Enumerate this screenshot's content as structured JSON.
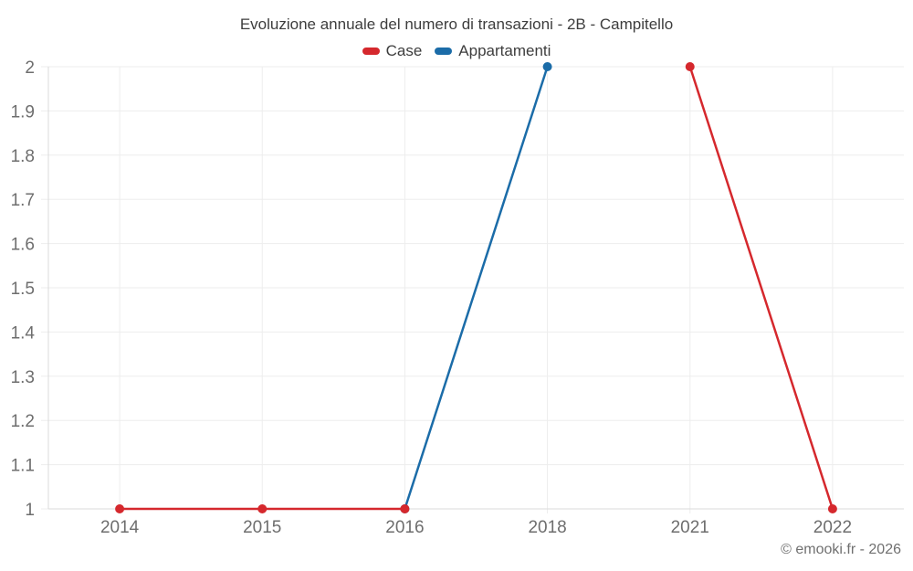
{
  "chart_data": {
    "type": "line",
    "title": "Evoluzione annuale del numero di transazioni - 2B - Campitello",
    "categories": [
      "2014",
      "2015",
      "2016",
      "2018",
      "2021",
      "2022"
    ],
    "series": [
      {
        "name": "Case",
        "color": "#d5282d",
        "values": [
          1,
          1,
          1,
          null,
          2,
          1
        ]
      },
      {
        "name": "Appartamenti",
        "color": "#1b6ca8",
        "values": [
          null,
          null,
          1,
          2,
          null,
          null
        ]
      }
    ],
    "ylim": [
      1,
      2
    ],
    "ytick_step": 0.1,
    "ytick_labels": [
      "1",
      "1.1",
      "1.2",
      "1.3",
      "1.4",
      "1.5",
      "1.6",
      "1.7",
      "1.8",
      "1.9",
      "2"
    ],
    "grid": true,
    "legend_position": "top",
    "xlabel": "",
    "ylabel": ""
  },
  "credit": "© emooki.fr - 2026",
  "colors": {
    "case_red": "#d5282d",
    "appartamenti_blue": "#1b6ca8",
    "title_text": "#3d3d3d",
    "axis_label_text": "#6e6e6e",
    "credit_text": "#707070",
    "gridline": "#ededed",
    "axis_line": "#dbdbdb",
    "background": "#ffffff"
  }
}
